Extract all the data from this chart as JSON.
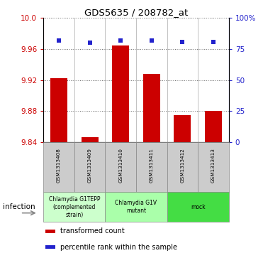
{
  "title": "GDS5635 / 208782_at",
  "samples": [
    "GSM1313408",
    "GSM1313409",
    "GSM1313410",
    "GSM1313411",
    "GSM1313412",
    "GSM1313413"
  ],
  "bar_values": [
    9.922,
    9.846,
    9.965,
    9.928,
    9.875,
    9.88
  ],
  "percentile_values": [
    82,
    80,
    82,
    82,
    81,
    81
  ],
  "ylim_left": [
    9.84,
    10.0
  ],
  "ylim_right": [
    0,
    100
  ],
  "yticks_left": [
    9.84,
    9.88,
    9.92,
    9.96,
    10.0
  ],
  "yticks_right": [
    0,
    25,
    50,
    75,
    100
  ],
  "bar_color": "#cc0000",
  "dot_color": "#2222cc",
  "bar_width": 0.55,
  "groups": [
    {
      "label": "Chlamydia G1TEPP\n(complemented\nstrain)",
      "span": [
        0,
        2
      ],
      "color": "#ccffcc"
    },
    {
      "label": "Chlamydia G1V\nmutant",
      "span": [
        2,
        4
      ],
      "color": "#aaffaa"
    },
    {
      "label": "mock",
      "span": [
        4,
        6
      ],
      "color": "#44dd44"
    }
  ],
  "infection_label": "infection",
  "legend_items": [
    {
      "color": "#cc0000",
      "label": "transformed count"
    },
    {
      "color": "#2222cc",
      "label": "percentile rank within the sample"
    }
  ],
  "sample_box_color": "#cccccc",
  "grid_color": "black",
  "grid_alpha": 0.4,
  "figsize": [
    3.71,
    3.63
  ],
  "dpi": 100
}
